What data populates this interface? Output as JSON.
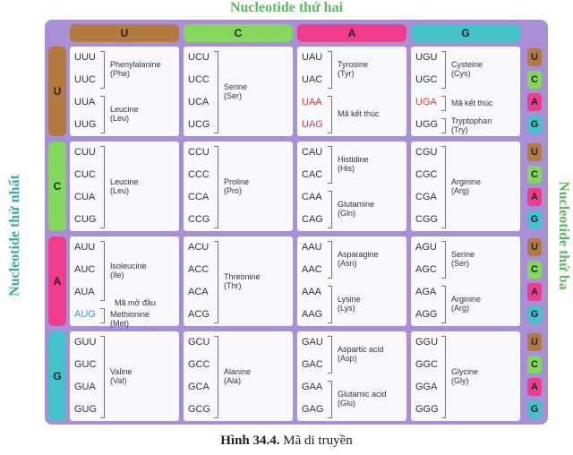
{
  "top_label": "Nucleotide thứ hai",
  "left_label": "Nucleotide thứ nhất",
  "right_label": "Nucleotide thứ ba",
  "caption": {
    "number": "Hình 34.4.",
    "text": "Mã di truyền"
  },
  "columns": [
    "U",
    "C",
    "A",
    "G"
  ],
  "base_colors": [
    "#b27a3e",
    "#82d75c",
    "#ee3d8c",
    "#44c2c9"
  ],
  "third": [
    "U",
    "C",
    "A",
    "G"
  ],
  "rows": [
    {
      "base": "U",
      "cells": [
        {
          "groups": [
            {
              "codons": [
                "UUU",
                "UUC"
              ],
              "name": "Phenylalanine",
              "abbr": "(Phe)"
            },
            {
              "codons": [
                "UUA",
                "UUG"
              ],
              "name": "Leucine",
              "abbr": "(Leu)"
            }
          ]
        },
        {
          "groups": [
            {
              "codons": [
                "UCU",
                "UCC",
                "UCA",
                "UCG"
              ],
              "name": "Serine",
              "abbr": "(Ser)"
            }
          ]
        },
        {
          "groups": [
            {
              "codons": [
                "UAU",
                "UAC"
              ],
              "name": "Tyrosine",
              "abbr": "(Tyr)"
            },
            {
              "codons": [
                "UAA",
                "UAG"
              ],
              "name": "Mã kết thúc",
              "color": "#e53935"
            }
          ]
        },
        {
          "groups": [
            {
              "codons": [
                "UGU",
                "UGC"
              ],
              "name": "Cysteine",
              "abbr": "(Cys)"
            },
            {
              "codons": [
                "UGA"
              ],
              "name": "Mã kết thúc",
              "color": "#e53935"
            },
            {
              "codons": [
                "UGG"
              ],
              "name": "Tryptophan",
              "abbr": "(Try)"
            }
          ]
        }
      ]
    },
    {
      "base": "C",
      "cells": [
        {
          "groups": [
            {
              "codons": [
                "CUU",
                "CUC",
                "CUA",
                "CUG"
              ],
              "name": "Leucine",
              "abbr": "(Leu)"
            }
          ]
        },
        {
          "groups": [
            {
              "codons": [
                "CCU",
                "CCC",
                "CCA",
                "CCG"
              ],
              "name": "Proline",
              "abbr": "(Pro)"
            }
          ]
        },
        {
          "groups": [
            {
              "codons": [
                "CAU",
                "CAC"
              ],
              "name": "Histidine",
              "abbr": "(His)"
            },
            {
              "codons": [
                "CAA",
                "CAG"
              ],
              "name": "Glutamine",
              "abbr": "(Gln)"
            }
          ]
        },
        {
          "groups": [
            {
              "codons": [
                "CGU",
                "CGC",
                "CGA",
                "CGG"
              ],
              "name": "Arginine",
              "abbr": "(Arg)"
            }
          ]
        }
      ]
    },
    {
      "base": "A",
      "cells": [
        {
          "groups": [
            {
              "codons": [
                "AUU",
                "AUC",
                "AUA"
              ],
              "name": "Isoleucine",
              "abbr": "(Ile)"
            },
            {
              "codons": [
                "AUG"
              ],
              "note": "Mã mở đầu",
              "name": "Methionine",
              "abbr": "(Met)",
              "color": "#2a9fd6"
            }
          ]
        },
        {
          "groups": [
            {
              "codons": [
                "ACU",
                "ACC",
                "ACA",
                "ACG"
              ],
              "name": "Threonine",
              "abbr": "(Thr)"
            }
          ]
        },
        {
          "groups": [
            {
              "codons": [
                "AAU",
                "AAC"
              ],
              "name": "Asparagine",
              "abbr": "(Asn)"
            },
            {
              "codons": [
                "AAA",
                "AAG"
              ],
              "name": "Lysine",
              "abbr": "(Lys)"
            }
          ]
        },
        {
          "groups": [
            {
              "codons": [
                "AGU",
                "AGC"
              ],
              "name": "Serine",
              "abbr": "(Ser)"
            },
            {
              "codons": [
                "AGA",
                "AGG"
              ],
              "name": "Arginine",
              "abbr": "(Arg)"
            }
          ]
        }
      ]
    },
    {
      "base": "G",
      "cells": [
        {
          "groups": [
            {
              "codons": [
                "GUU",
                "GUC",
                "GUA",
                "GUG"
              ],
              "name": "Valine",
              "abbr": "(Val)"
            }
          ]
        },
        {
          "groups": [
            {
              "codons": [
                "GCU",
                "GCC",
                "GCA",
                "GCG"
              ],
              "name": "Alanine",
              "abbr": "(Ala)"
            }
          ]
        },
        {
          "groups": [
            {
              "codons": [
                "GAU",
                "GAC"
              ],
              "name": "Aspartic acid",
              "abbr": "(Asp)"
            },
            {
              "codons": [
                "GAA",
                "GAG"
              ],
              "name": "Glutamic acid",
              "abbr": "(Glu)"
            }
          ]
        },
        {
          "groups": [
            {
              "codons": [
                "GGU",
                "GGC",
                "GGA",
                "GGG"
              ],
              "name": "Glycine",
              "abbr": "(Gly)"
            }
          ]
        }
      ]
    }
  ]
}
